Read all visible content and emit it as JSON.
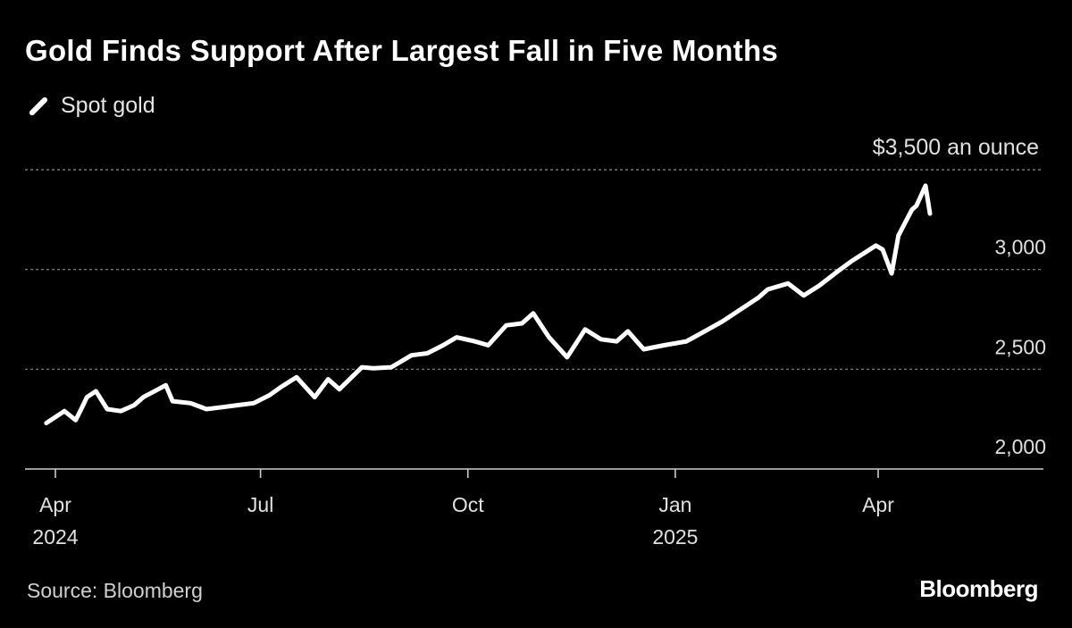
{
  "title": "Gold Finds Support After Largest Fall in Five Months",
  "legend": {
    "label": "Spot gold"
  },
  "source": "Source: Bloomberg",
  "brand": "Bloomberg",
  "colors": {
    "background": "#000000",
    "line": "#ffffff",
    "grid": "#8a8a8a",
    "axis": "#cccccc"
  },
  "chart_data": {
    "type": "line",
    "title": "Gold Finds Support After Largest Fall in Five Months",
    "xlabel": "",
    "ylabel": "",
    "unit_label": "$3,500 an ounce",
    "ylim": [
      2000,
      3500
    ],
    "xlim": [
      "2024-04-01",
      "2025-06-30"
    ],
    "grid": true,
    "legend_position": "top-left",
    "y_ticks": [
      {
        "value": 2000,
        "label": "2,000"
      },
      {
        "value": 2500,
        "label": "2,500"
      },
      {
        "value": 3000,
        "label": "3,000"
      },
      {
        "value": 3500,
        "label": "$3,500 an ounce"
      }
    ],
    "x_ticks": [
      {
        "date": "2024-04-01",
        "label": "Apr",
        "year": "2024"
      },
      {
        "date": "2024-07-01",
        "label": "Jul",
        "year": ""
      },
      {
        "date": "2024-10-01",
        "label": "Oct",
        "year": ""
      },
      {
        "date": "2025-01-01",
        "label": "Jan",
        "year": "2025"
      },
      {
        "date": "2025-04-01",
        "label": "Apr",
        "year": ""
      }
    ],
    "series": [
      {
        "name": "Spot gold",
        "x": [
          "2024-03-28",
          "2024-04-05",
          "2024-04-10",
          "2024-04-12",
          "2024-04-15",
          "2024-04-19",
          "2024-04-24",
          "2024-04-30",
          "2024-05-06",
          "2024-05-10",
          "2024-05-15",
          "2024-05-20",
          "2024-05-23",
          "2024-05-31",
          "2024-06-07",
          "2024-06-14",
          "2024-06-21",
          "2024-06-28",
          "2024-07-05",
          "2024-07-10",
          "2024-07-17",
          "2024-07-25",
          "2024-07-31",
          "2024-08-05",
          "2024-08-15",
          "2024-08-20",
          "2024-08-28",
          "2024-09-06",
          "2024-09-13",
          "2024-09-20",
          "2024-09-26",
          "2024-10-04",
          "2024-10-10",
          "2024-10-18",
          "2024-10-25",
          "2024-10-30",
          "2024-11-06",
          "2024-11-14",
          "2024-11-22",
          "2024-11-29",
          "2024-12-06",
          "2024-12-11",
          "2024-12-18",
          "2024-12-27",
          "2025-01-06",
          "2025-01-14",
          "2025-01-22",
          "2025-01-30",
          "2025-02-07",
          "2025-02-11",
          "2025-02-20",
          "2025-02-27",
          "2025-03-06",
          "2025-03-14",
          "2025-03-20",
          "2025-03-31",
          "2025-04-03",
          "2025-04-07",
          "2025-04-10",
          "2025-04-16",
          "2025-04-18",
          "2025-04-22",
          "2025-04-24"
        ],
        "values": [
          2230,
          2290,
          2245,
          2290,
          2360,
          2390,
          2300,
          2290,
          2320,
          2360,
          2390,
          2420,
          2340,
          2330,
          2300,
          2310,
          2320,
          2330,
          2370,
          2410,
          2460,
          2360,
          2450,
          2400,
          2510,
          2505,
          2510,
          2570,
          2580,
          2620,
          2660,
          2640,
          2620,
          2720,
          2730,
          2780,
          2660,
          2560,
          2700,
          2650,
          2640,
          2690,
          2600,
          2620,
          2640,
          2690,
          2740,
          2800,
          2860,
          2900,
          2930,
          2870,
          2920,
          2990,
          3040,
          3120,
          3100,
          2980,
          3170,
          3300,
          3320,
          3420,
          3280
        ]
      }
    ]
  }
}
